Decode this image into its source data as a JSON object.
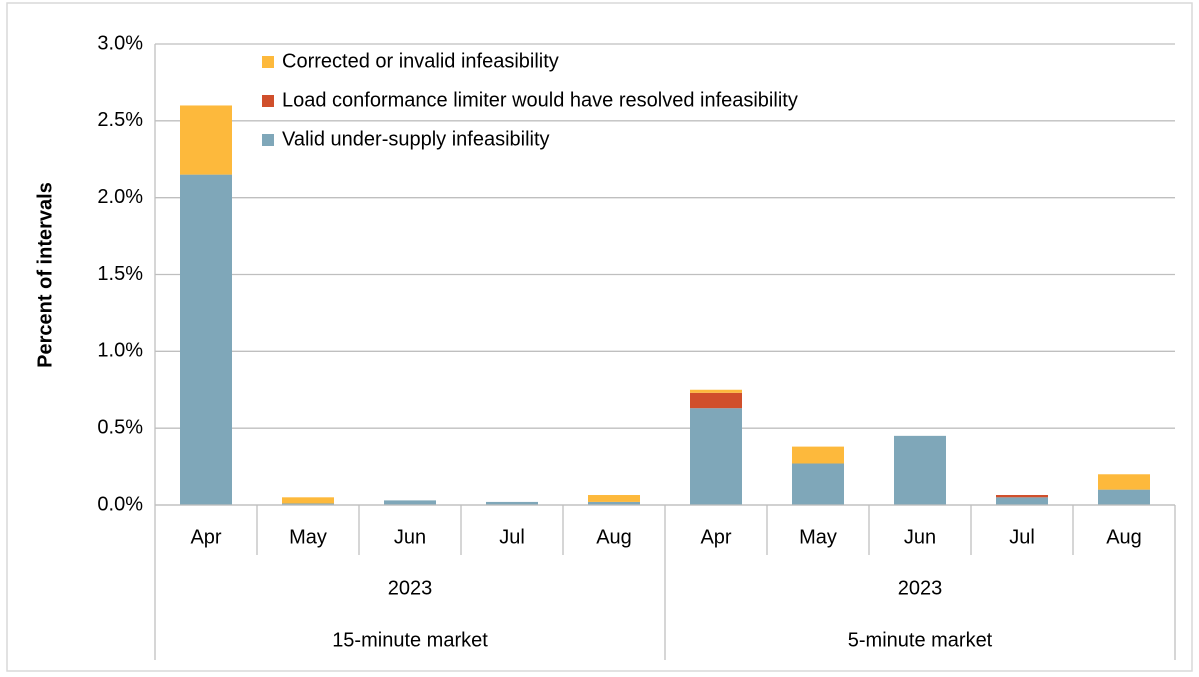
{
  "chart_data": {
    "type": "stacked_bar",
    "y_axis_label": "Percent of intervals",
    "groups": [
      {
        "name": "15-minute market",
        "subgroups": [
          {
            "name": "2023",
            "categories": [
              "Apr",
              "May",
              "Jun",
              "Jul",
              "Aug"
            ]
          }
        ]
      },
      {
        "name": "5-minute market",
        "subgroups": [
          {
            "name": "2023",
            "categories": [
              "Apr",
              "May",
              "Jun",
              "Jul",
              "Aug"
            ]
          }
        ]
      }
    ],
    "series": [
      {
        "name": "Valid under-supply infeasibility",
        "color": "#7fa7b9",
        "values": [
          2.15,
          0.01,
          0.03,
          0.02,
          0.02,
          0.63,
          0.27,
          0.45,
          0.05,
          0.1
        ]
      },
      {
        "name": "Load conformance limiter would have resolved infeasibility",
        "color": "#d04f2b",
        "values": [
          0,
          0,
          0,
          0,
          0,
          0.1,
          0,
          0,
          0.015,
          0
        ]
      },
      {
        "name": "Corrected or invalid infeasibility",
        "color": "#fdb93c",
        "values": [
          0.45,
          0.04,
          0,
          0,
          0.045,
          0.02,
          0.11,
          0,
          0,
          0.1
        ]
      }
    ],
    "ylim": [
      0,
      3
    ],
    "yticks": [
      {
        "value": 0,
        "label": "0.0%"
      },
      {
        "value": 0.5,
        "label": "0.5%"
      },
      {
        "value": 1,
        "label": "1.0%"
      },
      {
        "value": 1.5,
        "label": "1.5%"
      },
      {
        "value": 2,
        "label": "2.0%"
      },
      {
        "value": 2.5,
        "label": "2.5%"
      },
      {
        "value": 3,
        "label": "3.0%"
      }
    ],
    "grid": true,
    "legend_position": "top-left"
  }
}
